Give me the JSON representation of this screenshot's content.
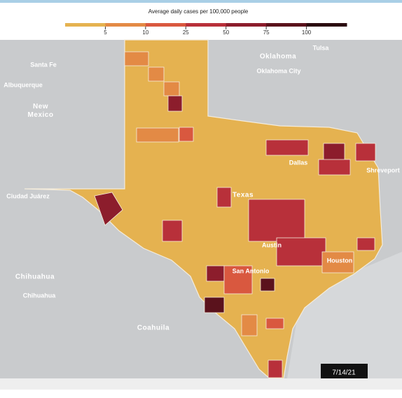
{
  "legend": {
    "title": "Average daily cases per 100,000 people",
    "ticks": [
      5,
      10,
      25,
      50,
      75,
      100
    ],
    "colors": [
      "#e5b250",
      "#e38a45",
      "#d9583f",
      "#b8303a",
      "#8c1d2c",
      "#5a121c",
      "#2a0a0e"
    ]
  },
  "labels": {
    "oklahoma": "Oklahoma",
    "tulsa": "Tulsa",
    "oklahoma_city": "Oklahoma City",
    "santa_fe": "Santa Fe",
    "albuquerque": "Albuquerque",
    "new_mexico": "New\nMexico",
    "dallas": "Dallas",
    "shreveport": "Shreveport",
    "ciudad_juarez": "Ciudad Juárez",
    "texas": "Texas",
    "austin": "Austin",
    "san_antonio": "San Antonio",
    "houston": "Houston",
    "chihuahua_state": "Chihuahua",
    "chihuahua_city": "Chihuahua",
    "coahuila": "Coahuila"
  },
  "date": "7/14/21"
}
